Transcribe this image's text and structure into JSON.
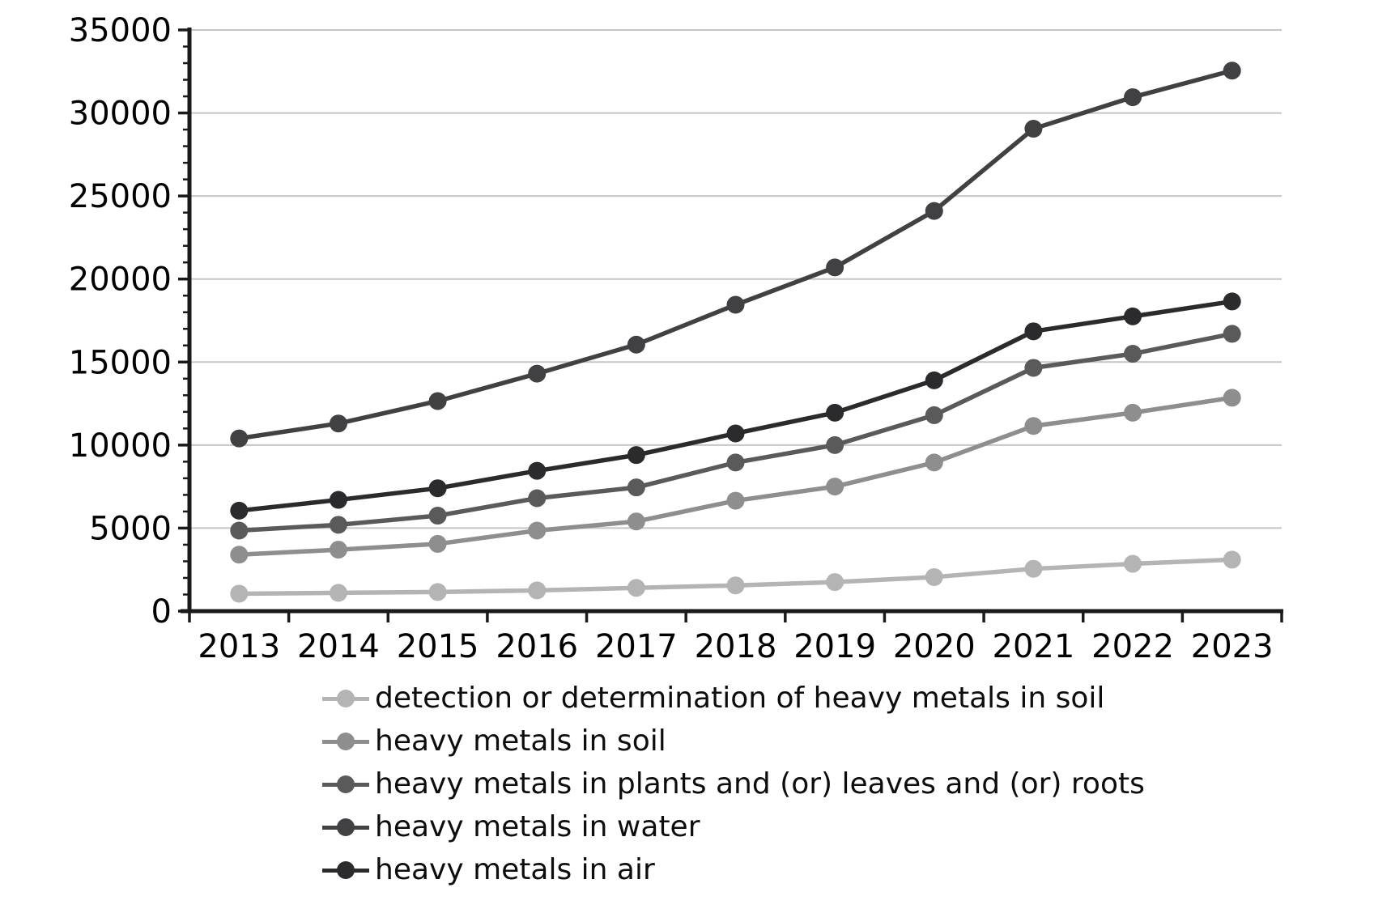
{
  "chart_data": {
    "type": "line",
    "title": "",
    "xlabel": "",
    "ylabel": "",
    "categories": [
      2013,
      2014,
      2015,
      2016,
      2017,
      2018,
      2019,
      2020,
      2021,
      2022,
      2023
    ],
    "ylim": [
      0,
      35000
    ],
    "y_tick_step": 5000,
    "y_minor_tick_step": 1000,
    "y_ticks": [
      0,
      5000,
      10000,
      15000,
      20000,
      25000,
      30000,
      35000
    ],
    "grid": "horizontal",
    "grid_color": "#c5c5c5",
    "axis_color": "#1a1a1a",
    "legend_position": "bottom-left",
    "marker": "circle",
    "series": [
      {
        "name": "detection or determination of heavy metals in soil",
        "color": "#b4b4b4",
        "values": [
          1050,
          1100,
          1150,
          1250,
          1400,
          1550,
          1750,
          2050,
          2550,
          2850,
          3100
        ]
      },
      {
        "name": "heavy metals in soil",
        "color": "#8e8e8e",
        "values": [
          3400,
          3700,
          4050,
          4850,
          5400,
          6650,
          7500,
          8950,
          11150,
          11950,
          12850
        ]
      },
      {
        "name": "heavy metals in plants and (or) leaves and (or) roots",
        "color": "#5a5a5a",
        "values": [
          4850,
          5200,
          5750,
          6800,
          7450,
          8950,
          10000,
          11800,
          14650,
          15500,
          16700
        ]
      },
      {
        "name": "heavy metals in water",
        "color": "#414143",
        "values": [
          10400,
          11300,
          12650,
          14300,
          16050,
          18450,
          20700,
          24100,
          29050,
          30950,
          32550
        ]
      },
      {
        "name": "heavy metals in air",
        "color": "#2b2b2d",
        "values": [
          6050,
          6700,
          7400,
          8450,
          9400,
          10700,
          11950,
          13900,
          16850,
          17750,
          18650
        ]
      }
    ]
  }
}
